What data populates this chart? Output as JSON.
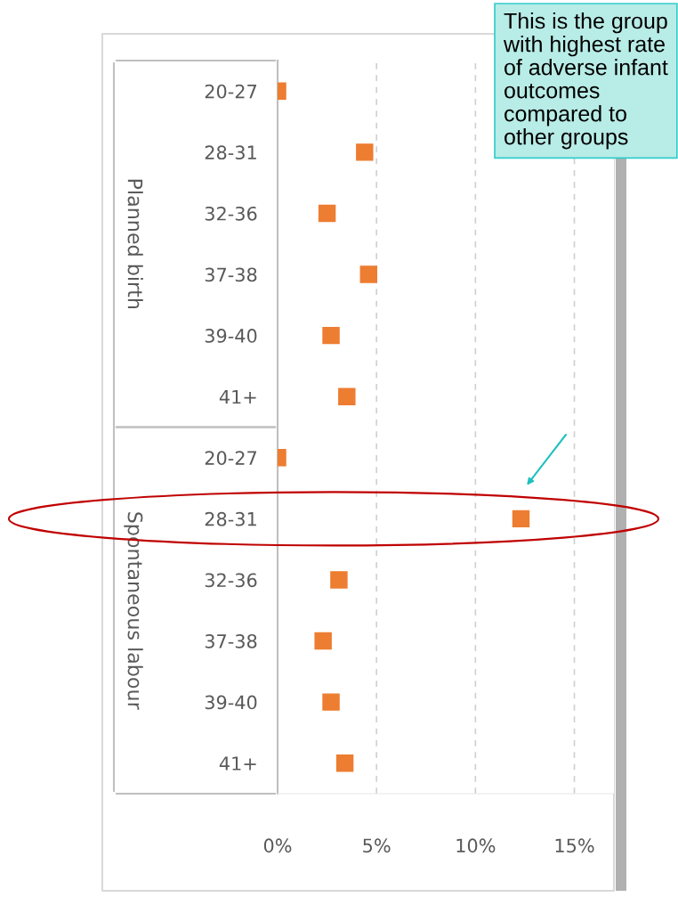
{
  "chart_data": {
    "type": "scatter",
    "orientation": "horizontal",
    "categories": [
      "20-27",
      "28-31",
      "32-36",
      "37-38",
      "39-40",
      "41+",
      "20-27",
      "28-31",
      "32-36",
      "37-38",
      "39-40",
      "41+"
    ],
    "values": [
      0.0,
      4.4,
      2.5,
      4.6,
      2.7,
      3.5,
      0.0,
      12.3,
      3.1,
      2.3,
      2.7,
      3.4
    ],
    "color": "#ed7d31",
    "marker": "square",
    "xlim": [
      0,
      17
    ],
    "xticks": [
      {
        "value": 0,
        "label": "0%"
      },
      {
        "value": 5,
        "label": "5%"
      },
      {
        "value": 10,
        "label": "10%"
      },
      {
        "value": 15,
        "label": "15%"
      }
    ],
    "grid": "x",
    "annotations": [
      "Planned birth",
      "Spontaneous labour",
      "This is the group with highest rate of adverse infant outcomes compared to other groups"
    ]
  }
}
